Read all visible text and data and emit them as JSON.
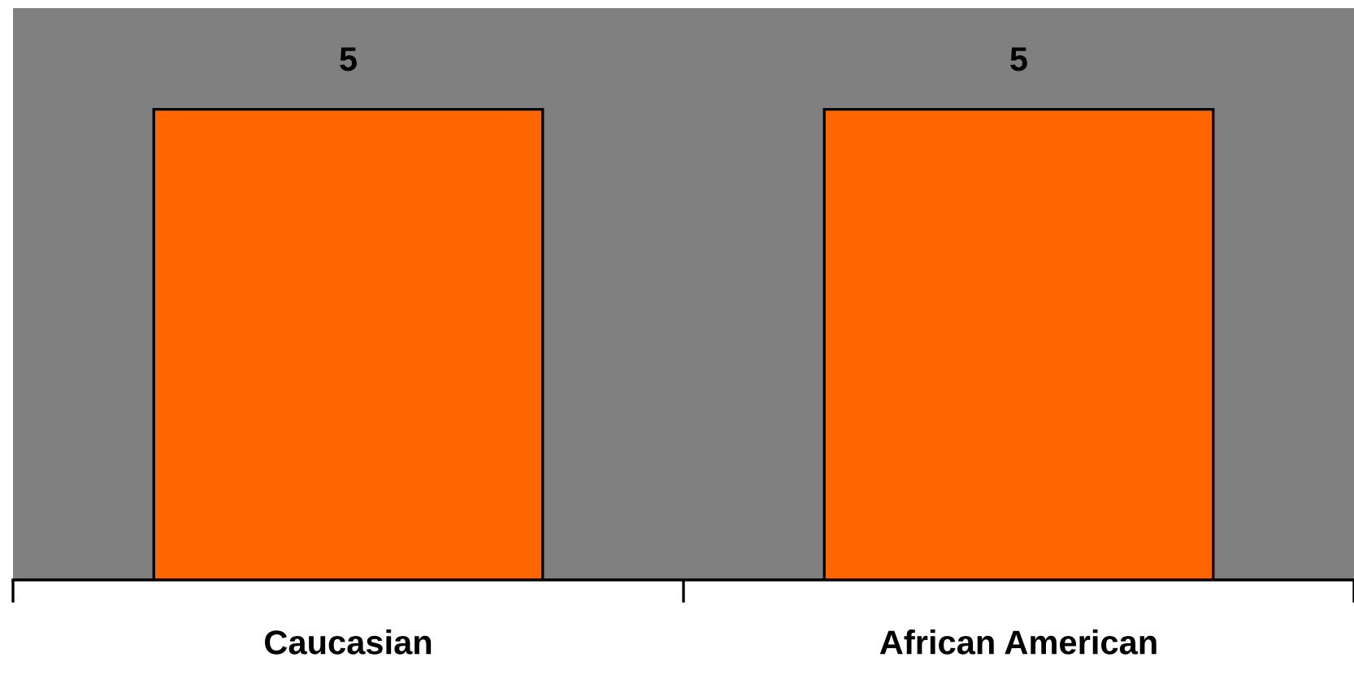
{
  "chart_data": {
    "type": "bar",
    "categories": [
      "Caucasian",
      "African American"
    ],
    "values": [
      5,
      5
    ],
    "color": "#ff6600",
    "data_labels": true,
    "grid": false,
    "legend": false
  }
}
